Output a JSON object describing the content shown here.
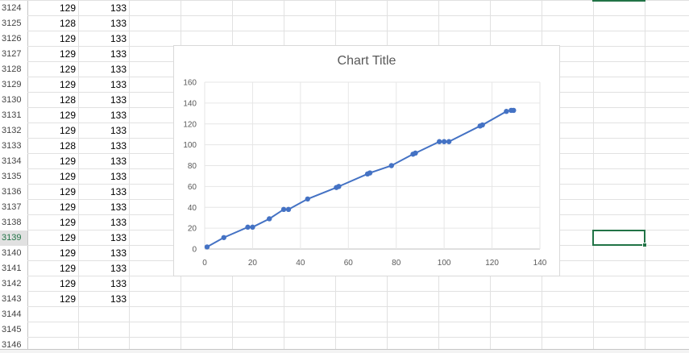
{
  "rows": [
    {
      "num": "3124",
      "b": "129",
      "c": "133"
    },
    {
      "num": "3125",
      "b": "128",
      "c": "133"
    },
    {
      "num": "3126",
      "b": "129",
      "c": "133"
    },
    {
      "num": "3127",
      "b": "129",
      "c": "133"
    },
    {
      "num": "3128",
      "b": "129",
      "c": "133"
    },
    {
      "num": "3129",
      "b": "129",
      "c": "133"
    },
    {
      "num": "3130",
      "b": "128",
      "c": "133"
    },
    {
      "num": "3131",
      "b": "129",
      "c": "133"
    },
    {
      "num": "3132",
      "b": "129",
      "c": "133"
    },
    {
      "num": "3133",
      "b": "128",
      "c": "133"
    },
    {
      "num": "3134",
      "b": "129",
      "c": "133"
    },
    {
      "num": "3135",
      "b": "129",
      "c": "133"
    },
    {
      "num": "3136",
      "b": "129",
      "c": "133"
    },
    {
      "num": "3137",
      "b": "129",
      "c": "133"
    },
    {
      "num": "3138",
      "b": "129",
      "c": "133"
    },
    {
      "num": "3139",
      "b": "129",
      "c": "133"
    },
    {
      "num": "3140",
      "b": "129",
      "c": "133"
    },
    {
      "num": "3141",
      "b": "129",
      "c": "133"
    },
    {
      "num": "3142",
      "b": "129",
      "c": "133"
    },
    {
      "num": "3143",
      "b": "129",
      "c": "133"
    },
    {
      "num": "3144",
      "b": "",
      "c": ""
    },
    {
      "num": "3145",
      "b": "",
      "c": ""
    },
    {
      "num": "3146",
      "b": "",
      "c": ""
    }
  ],
  "selected_row": "3139",
  "chart_data": {
    "type": "scatter",
    "title": "Chart Title",
    "xlabel": "",
    "ylabel": "",
    "xlim": [
      0,
      140
    ],
    "ylim": [
      0,
      160
    ],
    "xticks": [
      "0",
      "20",
      "40",
      "60",
      "80",
      "100",
      "120",
      "140"
    ],
    "yticks": [
      "0",
      "20",
      "40",
      "60",
      "80",
      "100",
      "120",
      "140",
      "160"
    ],
    "grid": true,
    "series_color": "#4472c4",
    "x": [
      1,
      8,
      18,
      20,
      27,
      33,
      35,
      43,
      55,
      56,
      68,
      69,
      78,
      87,
      88,
      98,
      100,
      102,
      115,
      116,
      126,
      128,
      129
    ],
    "y": [
      2,
      11,
      21,
      21,
      29,
      38,
      38,
      48,
      59,
      60,
      72,
      73,
      80,
      91,
      92,
      103,
      103,
      103,
      118,
      119,
      132,
      133,
      133
    ]
  }
}
